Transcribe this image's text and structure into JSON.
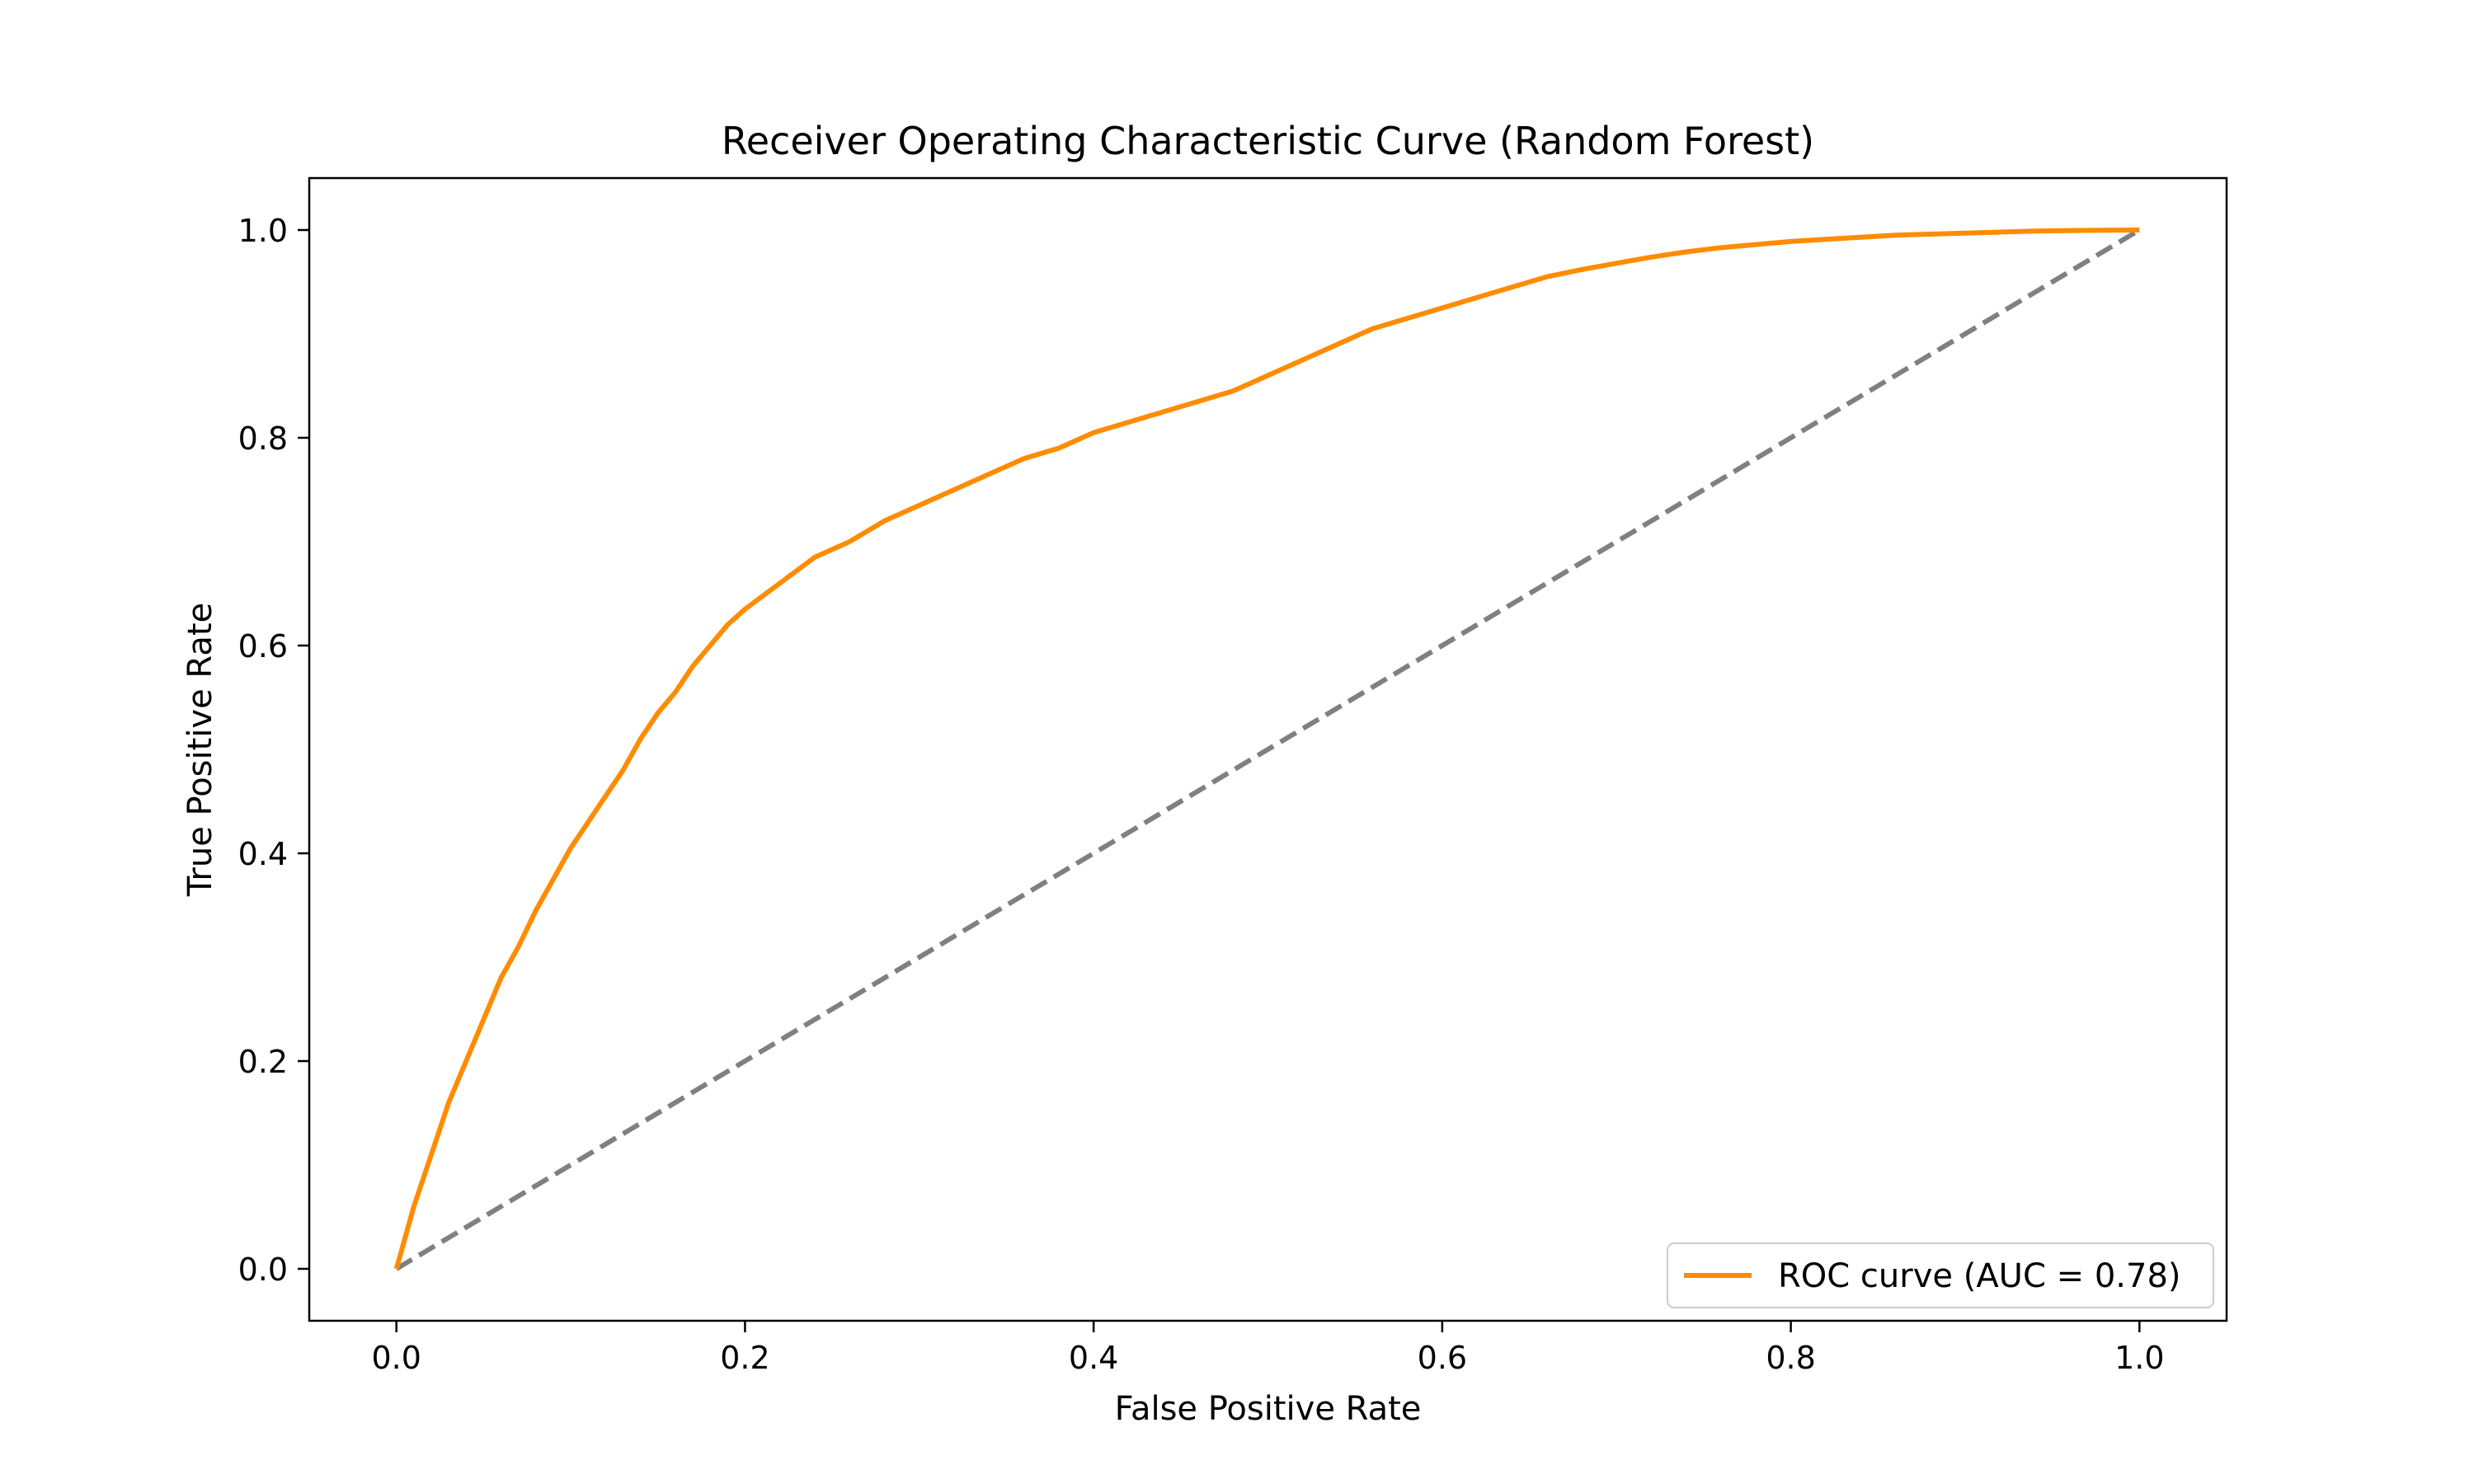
{
  "chart_data": {
    "type": "line",
    "title": "Receiver Operating Characteristic Curve (Random Forest)",
    "xlabel": "False Positive Rate",
    "ylabel": "True Positive Rate",
    "xlim": [
      -0.05,
      1.05
    ],
    "ylim": [
      -0.05,
      1.05
    ],
    "xticks": [
      0.0,
      0.2,
      0.4,
      0.6,
      0.8,
      1.0
    ],
    "xtick_labels": [
      "0.0",
      "0.2",
      "0.4",
      "0.6",
      "0.8",
      "1.0"
    ],
    "yticks": [
      0.0,
      0.2,
      0.4,
      0.6,
      0.8,
      1.0
    ],
    "ytick_labels": [
      "0.0",
      "0.2",
      "0.4",
      "0.6",
      "0.8",
      "1.0"
    ],
    "grid": false,
    "legend_position": "lower-right",
    "series": [
      {
        "name": "ROC curve (AUC = 0.78)",
        "color": "#ff8c00",
        "line_style": "solid",
        "x": [
          0.0,
          0.005,
          0.01,
          0.02,
          0.03,
          0.04,
          0.05,
          0.06,
          0.07,
          0.08,
          0.09,
          0.1,
          0.11,
          0.12,
          0.13,
          0.14,
          0.15,
          0.16,
          0.17,
          0.18,
          0.19,
          0.2,
          0.22,
          0.24,
          0.26,
          0.28,
          0.3,
          0.32,
          0.34,
          0.36,
          0.38,
          0.4,
          0.42,
          0.44,
          0.46,
          0.48,
          0.5,
          0.52,
          0.54,
          0.56,
          0.58,
          0.6,
          0.62,
          0.64,
          0.66,
          0.68,
          0.7,
          0.72,
          0.74,
          0.76,
          0.78,
          0.8,
          0.82,
          0.84,
          0.86,
          0.88,
          0.9,
          0.92,
          0.94,
          0.96,
          0.98,
          1.0
        ],
        "y": [
          0.0,
          0.03,
          0.06,
          0.11,
          0.16,
          0.2,
          0.24,
          0.28,
          0.31,
          0.345,
          0.375,
          0.405,
          0.43,
          0.455,
          0.48,
          0.51,
          0.535,
          0.555,
          0.58,
          0.6,
          0.62,
          0.635,
          0.66,
          0.685,
          0.7,
          0.72,
          0.735,
          0.75,
          0.765,
          0.78,
          0.79,
          0.805,
          0.815,
          0.825,
          0.835,
          0.845,
          0.86,
          0.875,
          0.89,
          0.905,
          0.915,
          0.925,
          0.935,
          0.945,
          0.955,
          0.962,
          0.968,
          0.974,
          0.979,
          0.983,
          0.986,
          0.989,
          0.991,
          0.993,
          0.995,
          0.996,
          0.997,
          0.998,
          0.999,
          0.9995,
          0.9998,
          1.0
        ]
      },
      {
        "color": "#808080",
        "line_style": "dashed",
        "x": [
          0.0,
          1.0
        ],
        "y": [
          0.0,
          1.0
        ]
      }
    ]
  }
}
